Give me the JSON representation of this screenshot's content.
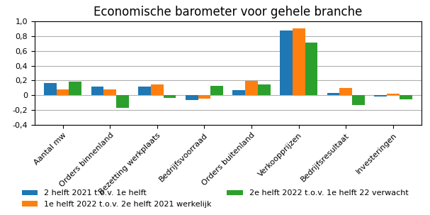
{
  "chart_data": {
    "type": "bar",
    "title": "Economische barometer voor gehele branche",
    "categories": [
      "Aantal mw",
      "Orders binnenland",
      "Bezetting werkplaats",
      "Bedrijfsvoorraad",
      "Orders buitenland",
      "Verkoopprijzen",
      "Bedrijfsresultaat",
      "Investeringen"
    ],
    "series": [
      {
        "name": "2 helft 2021 t.o.v. 1e helft",
        "values": [
          0.17,
          0.12,
          0.12,
          -0.07,
          0.07,
          0.88,
          0.03,
          -0.02
        ]
      },
      {
        "name": "1e helft 2022 t.o.v. 2e helft 2021 werkelijk",
        "values": [
          0.08,
          0.08,
          0.15,
          -0.05,
          0.19,
          0.91,
          0.1,
          0.02
        ]
      },
      {
        "name": "2e helft 2022 t.o.v. 1e helft 22 verwacht",
        "values": [
          0.18,
          -0.17,
          -0.04,
          0.13,
          0.15,
          0.71,
          -0.13,
          -0.06
        ]
      }
    ],
    "ylim": [
      -0.4,
      1.0
    ],
    "yticks": [
      {
        "value": -0.4,
        "label": "-0,4"
      },
      {
        "value": -0.2,
        "label": "-0,2"
      },
      0,
      {
        "value": 0.2,
        "label": "0,2"
      },
      {
        "value": 0.4,
        "label": "0,4"
      },
      {
        "value": 0.6,
        "label": "0,6"
      },
      {
        "value": 0.8,
        "label": "0,8"
      },
      {
        "value": 1.0,
        "label": "1,0"
      }
    ],
    "grid": true,
    "legend": "lower center"
  }
}
